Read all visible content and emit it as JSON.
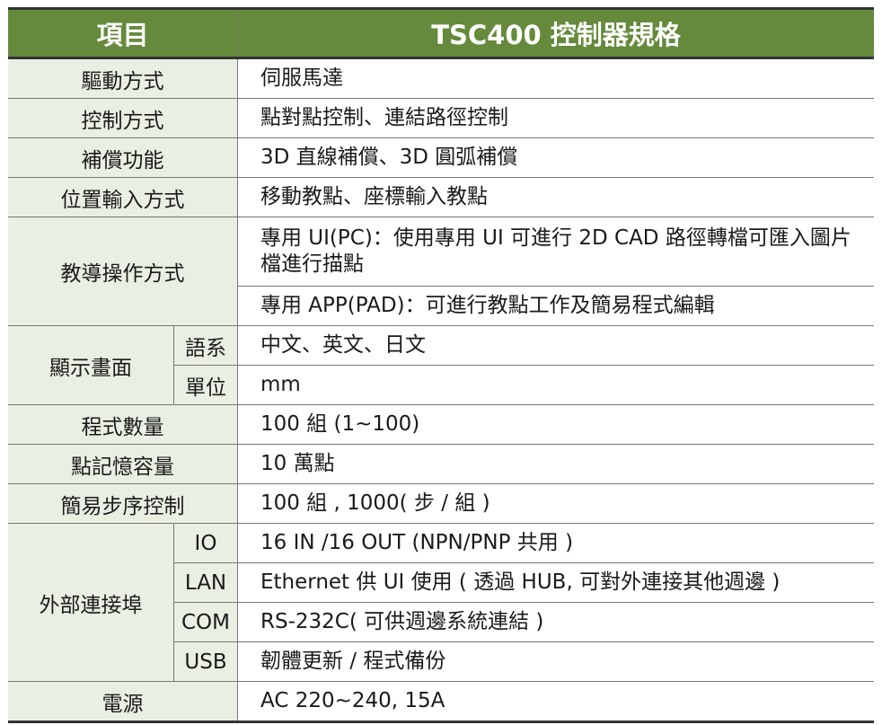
{
  "header": {
    "item": "項目",
    "spec": "TSC400 控制器規格"
  },
  "rows": {
    "drive": {
      "label": "驅動方式",
      "value": "伺服馬達"
    },
    "control": {
      "label": "控制方式",
      "value": "點對點控制、連結路徑控制"
    },
    "comp": {
      "label": "補償功能",
      "value": "3D 直線補償、3D 圓弧補償"
    },
    "pos": {
      "label": "位置輸入方式",
      "value": "移動教點、座標輸入教點"
    },
    "teach": {
      "label": "教導操作方式",
      "value1": "專用 UI(PC)：使用專用 UI 可進行 2D CAD 路徑轉檔可匯入圖片檔進行描點",
      "value2": "專用 APP(PAD)：可進行教點工作及簡易程式編輯"
    },
    "display": {
      "label": "顯示畫面",
      "lang_label": "語系",
      "lang": "中文、英文、日文",
      "unit_label": "單位",
      "unit": "mm"
    },
    "prog": {
      "label": "程式數量",
      "value": "100 組 (1~100)"
    },
    "mem": {
      "label": "點記憶容量",
      "value": "10 萬點"
    },
    "step": {
      "label": "簡易步序控制",
      "value": "100 組 , 1000( 步 / 組 )"
    },
    "ports": {
      "label": "外部連接埠",
      "io_label": "IO",
      "io": "16 IN /16 OUT (NPN/PNP 共用 )",
      "lan_label": "LAN",
      "lan": "Ethernet 供 UI 使用 ( 透過 HUB, 可對外連接其他週邊 )",
      "com_label": "COM",
      "com": "RS-232C( 可供週邊系統連結 )",
      "usb_label": "USB",
      "usb": "韌體更新 / 程式備份"
    },
    "power": {
      "label": "電源",
      "value": "AC 220~240, 15A"
    }
  },
  "colors": {
    "header_bg": "#658a3c",
    "label_bg": "#e9efe2"
  }
}
